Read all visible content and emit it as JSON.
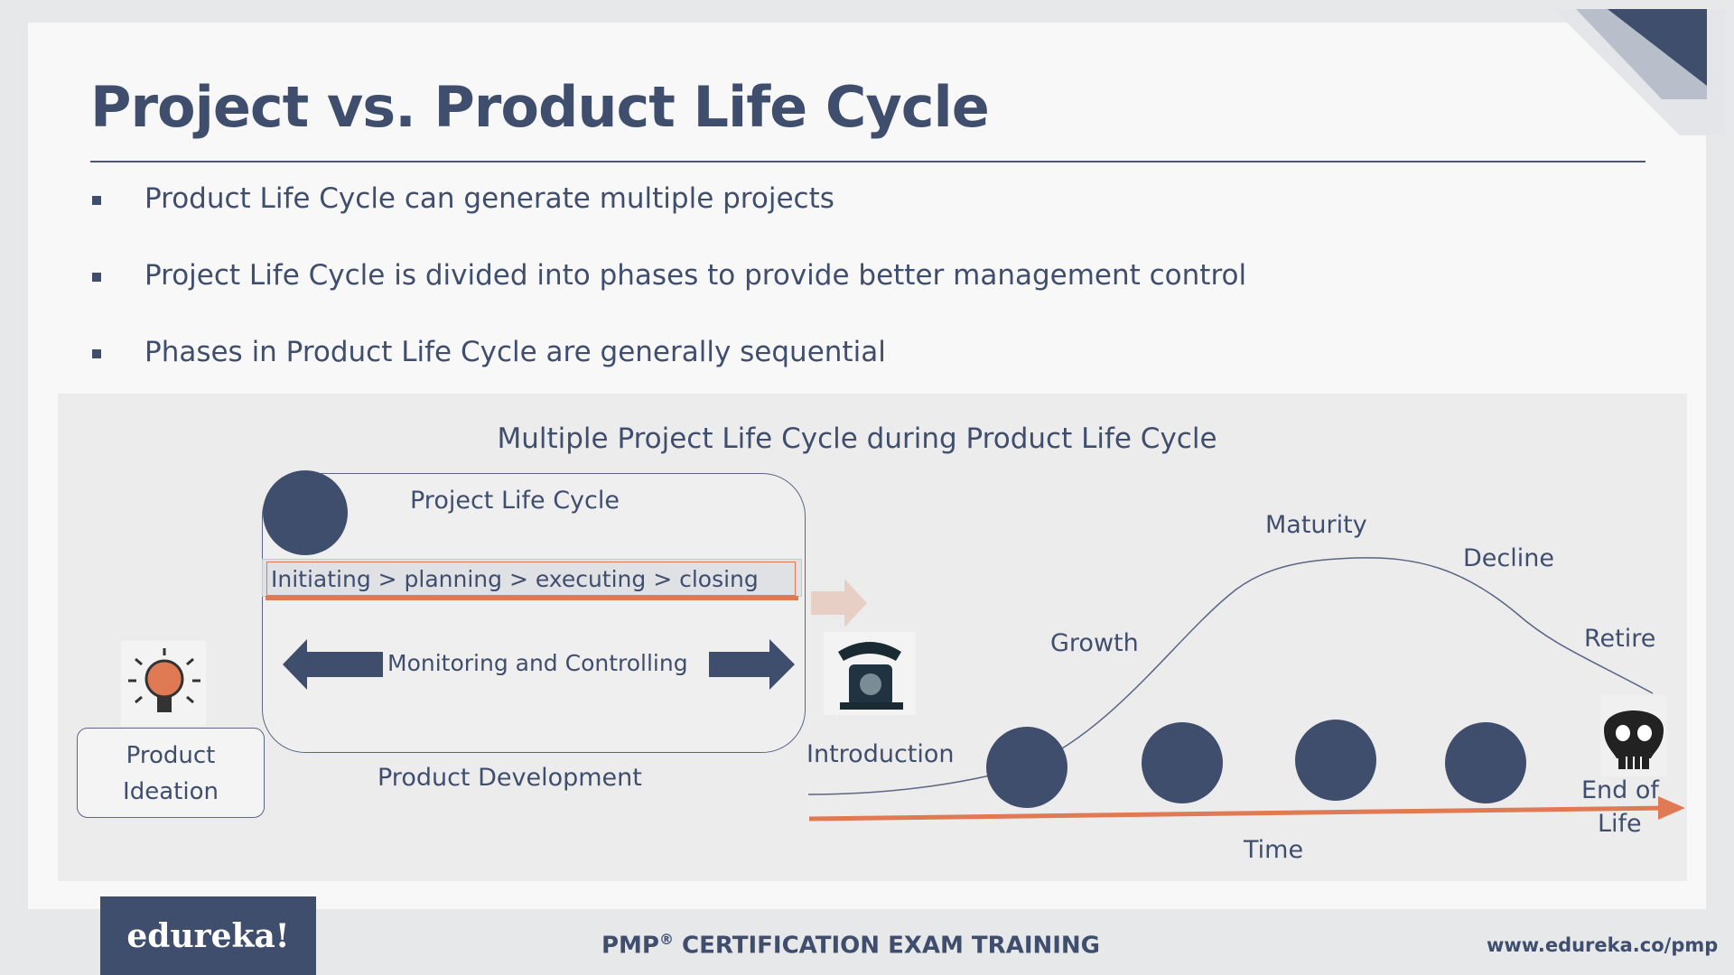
{
  "slide": {
    "title": "Project vs. Product Life Cycle",
    "bullets": [
      "Product Life Cycle can generate multiple projects",
      "Project Life Cycle is divided into phases to provide better management control",
      "Phases in Product Life Cycle are generally sequential"
    ]
  },
  "diagram": {
    "title": "Multiple Project Life Cycle during Product Life Cycle",
    "project_life_cycle": {
      "label": "Project Life Cycle",
      "phases": "Initiating > planning > executing > closing",
      "monitoring": "Monitoring and Controlling"
    },
    "product_ideation_line1": "Product",
    "product_ideation_line2": "Ideation",
    "product_development": "Product Development",
    "stages": {
      "introduction": "Introduction",
      "growth": "Growth",
      "maturity": "Maturity",
      "decline": "Decline",
      "retire": "Retire",
      "end_of_life_line1": "End of",
      "end_of_life_line2": "Life"
    },
    "axis_label": "Time",
    "colors": {
      "navy": "#404e6e",
      "orange": "#e07a54",
      "panel": "#ececec"
    },
    "icons": [
      "lightbulb-icon",
      "telephone-icon",
      "skull-icon",
      "arrow-left-icon",
      "arrow-right-icon"
    ]
  },
  "footer": {
    "logo": "edureka!",
    "center_main": "PMP",
    "center_reg": "®",
    "center_rest": " CERTIFICATION EXAM TRAINING",
    "url": "www.edureka.co/pmp"
  }
}
